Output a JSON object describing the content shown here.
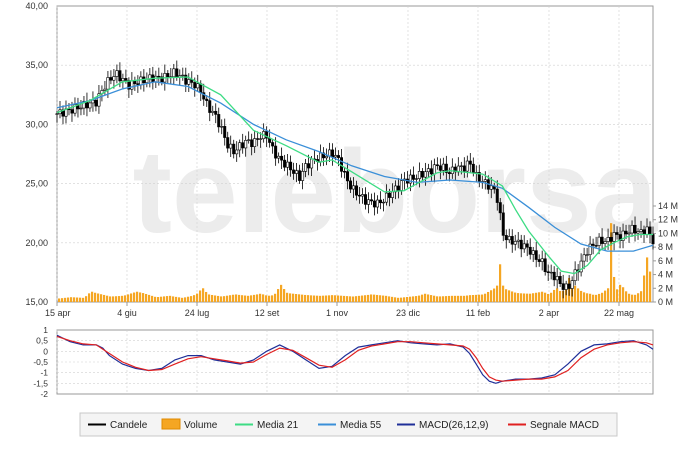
{
  "watermark": "teleborsa",
  "colors": {
    "candle": "#000000",
    "candle_up": "#ffffff",
    "volume_fill": "#f5a623",
    "volume_stroke": "#e08a00",
    "ma21": "#3ddc84",
    "ma55": "#3a8fd8",
    "macd": "#1f2f99",
    "signal": "#e02020",
    "grid": "#d0d0d0",
    "axis_text": "#333333",
    "panel_border": "#999999"
  },
  "chart_data": [
    {
      "type": "candlestick",
      "title": "",
      "x_tick_labels": [
        "15 apr",
        "4 giu",
        "24 lug",
        "12 set",
        "1 nov",
        "23 dic",
        "11 feb",
        "2 apr",
        "22 mag"
      ],
      "ylim": [
        15,
        40
      ],
      "y_ticks": [
        "15,00",
        "20,00",
        "25,00",
        "30,00",
        "35,00",
        "40,00"
      ],
      "volume_axis": {
        "ylim": [
          0,
          14
        ],
        "unit": "M",
        "ticks": [
          "0 M",
          "2 M",
          "4 M",
          "6 M",
          "8 M",
          "10 M",
          "12 M",
          "14 M"
        ]
      },
      "grid": true,
      "price_points": [
        [
          0,
          30.9
        ],
        [
          2,
          31.2
        ],
        [
          4,
          31.6
        ],
        [
          6,
          31.9
        ],
        [
          7,
          33.0
        ],
        [
          8,
          33.8
        ],
        [
          9,
          34.3
        ],
        [
          10,
          33.8
        ],
        [
          11,
          33.3
        ],
        [
          12,
          33.5
        ],
        [
          14,
          33.9
        ],
        [
          16,
          33.9
        ],
        [
          17,
          34.1
        ],
        [
          18,
          34.4
        ],
        [
          19,
          34.0
        ],
        [
          20,
          33.6
        ],
        [
          21,
          33.4
        ],
        [
          22,
          32.8
        ],
        [
          23,
          31.5
        ],
        [
          24,
          30.9
        ],
        [
          25,
          29.8
        ],
        [
          26,
          28.3
        ],
        [
          27,
          27.7
        ],
        [
          28,
          28.2
        ],
        [
          29,
          28.6
        ],
        [
          30,
          28.4
        ],
        [
          31,
          29.0
        ],
        [
          32,
          29.1
        ],
        [
          33,
          27.8
        ],
        [
          34,
          27.0
        ],
        [
          35,
          26.6
        ],
        [
          36,
          26.1
        ],
        [
          37,
          25.5
        ],
        [
          38,
          26.5
        ],
        [
          39,
          26.9
        ],
        [
          40,
          27.2
        ],
        [
          41,
          27.4
        ],
        [
          42,
          27.6
        ],
        [
          43,
          27.0
        ],
        [
          44,
          25.6
        ],
        [
          45,
          24.6
        ],
        [
          46,
          24.1
        ],
        [
          47,
          23.6
        ],
        [
          48,
          23.4
        ],
        [
          49,
          23.3
        ],
        [
          50,
          23.7
        ],
        [
          51,
          24.2
        ],
        [
          52,
          24.7
        ],
        [
          53,
          25.3
        ],
        [
          54,
          25.4
        ],
        [
          55,
          25.6
        ],
        [
          56,
          25.9
        ],
        [
          57,
          26.1
        ],
        [
          58,
          26.5
        ],
        [
          59,
          26.3
        ],
        [
          60,
          25.9
        ],
        [
          61,
          26.4
        ],
        [
          62,
          26.3
        ],
        [
          63,
          26.8
        ],
        [
          64,
          25.6
        ],
        [
          65,
          25.2
        ],
        [
          66,
          24.8
        ],
        [
          67,
          24.3
        ],
        [
          67.5,
          23.0
        ],
        [
          68,
          20.8
        ],
        [
          69,
          20.2
        ],
        [
          70,
          20.1
        ],
        [
          71,
          19.8
        ],
        [
          72,
          19.5
        ],
        [
          73,
          18.8
        ],
        [
          74,
          18.4
        ],
        [
          75,
          17.4
        ],
        [
          76,
          17.2
        ],
        [
          77,
          16.4
        ],
        [
          78,
          16.1
        ],
        [
          79,
          17.3
        ],
        [
          80,
          18.3
        ],
        [
          81,
          19.4
        ],
        [
          82,
          19.9
        ],
        [
          83,
          20.2
        ],
        [
          84,
          20.1
        ],
        [
          85,
          20.7
        ],
        [
          86,
          20.5
        ],
        [
          87,
          20.9
        ],
        [
          88,
          21.2
        ],
        [
          89,
          20.8
        ],
        [
          90,
          21.2
        ],
        [
          91,
          20.2
        ]
      ],
      "ma21": [
        [
          0,
          31.0
        ],
        [
          5,
          32.0
        ],
        [
          10,
          33.6
        ],
        [
          15,
          33.9
        ],
        [
          20,
          34.0
        ],
        [
          25,
          32.5
        ],
        [
          30,
          29.5
        ],
        [
          35,
          28.2
        ],
        [
          40,
          26.8
        ],
        [
          42,
          27.0
        ],
        [
          45,
          26.0
        ],
        [
          50,
          24.3
        ],
        [
          53,
          24.4
        ],
        [
          55,
          25.0
        ],
        [
          58,
          25.9
        ],
        [
          60,
          26.1
        ],
        [
          65,
          25.8
        ],
        [
          68,
          24.8
        ],
        [
          70,
          22.8
        ],
        [
          72,
          21.0
        ],
        [
          75,
          18.9
        ],
        [
          77,
          17.6
        ],
        [
          79,
          17.4
        ],
        [
          81,
          18.1
        ],
        [
          83,
          19.4
        ],
        [
          85,
          20.0
        ],
        [
          87,
          20.5
        ],
        [
          89,
          20.7
        ],
        [
          91,
          20.7
        ]
      ],
      "ma55": [
        [
          0,
          31.4
        ],
        [
          5,
          32.0
        ],
        [
          10,
          33.0
        ],
        [
          15,
          33.6
        ],
        [
          20,
          33.2
        ],
        [
          25,
          31.8
        ],
        [
          30,
          30.0
        ],
        [
          35,
          28.7
        ],
        [
          40,
          27.7
        ],
        [
          45,
          26.5
        ],
        [
          50,
          25.6
        ],
        [
          55,
          25.1
        ],
        [
          60,
          25.3
        ],
        [
          65,
          25.1
        ],
        [
          68,
          24.6
        ],
        [
          72,
          23.0
        ],
        [
          76,
          21.3
        ],
        [
          80,
          19.9
        ],
        [
          84,
          19.3
        ],
        [
          88,
          19.3
        ],
        [
          91,
          19.8
        ]
      ],
      "volume_millions": [
        [
          0,
          0.5
        ],
        [
          2,
          0.7
        ],
        [
          4,
          0.6
        ],
        [
          5,
          1.5
        ],
        [
          8,
          0.8
        ],
        [
          10,
          0.9
        ],
        [
          12,
          1.5
        ],
        [
          13,
          1.3
        ],
        [
          15,
          0.7
        ],
        [
          17,
          0.9
        ],
        [
          19,
          0.6
        ],
        [
          21,
          1.0
        ],
        [
          22,
          2.0
        ],
        [
          23,
          1.1
        ],
        [
          25,
          0.8
        ],
        [
          27,
          1.1
        ],
        [
          29,
          0.9
        ],
        [
          31,
          1.2
        ],
        [
          32,
          0.9
        ],
        [
          33,
          1.0
        ],
        [
          34,
          2.5
        ],
        [
          35,
          1.3
        ],
        [
          38,
          1.0
        ],
        [
          40,
          0.9
        ],
        [
          42,
          1.0
        ],
        [
          45,
          0.8
        ],
        [
          48,
          1.1
        ],
        [
          50,
          0.9
        ],
        [
          52,
          0.6
        ],
        [
          55,
          0.9
        ],
        [
          56,
          1.2
        ],
        [
          58,
          0.8
        ],
        [
          60,
          0.9
        ],
        [
          62,
          0.9
        ],
        [
          63,
          1.0
        ],
        [
          65,
          1.1
        ],
        [
          67,
          2.2
        ],
        [
          67.5,
          5.5
        ],
        [
          68,
          2.0
        ],
        [
          70,
          1.3
        ],
        [
          72,
          1.2
        ],
        [
          74,
          1.5
        ],
        [
          75,
          1.1
        ],
        [
          76,
          2.0
        ],
        [
          77,
          1.4
        ],
        [
          78,
          3.5
        ],
        [
          79,
          2.3
        ],
        [
          80,
          1.5
        ],
        [
          81,
          1.2
        ],
        [
          82,
          1.0
        ],
        [
          83,
          1.3
        ],
        [
          84,
          2.0
        ],
        [
          84.5,
          11.5
        ],
        [
          85,
          1.5
        ],
        [
          86,
          2.5
        ],
        [
          87,
          1.2
        ],
        [
          88,
          1.0
        ],
        [
          89,
          1.5
        ],
        [
          90,
          6.5
        ],
        [
          91,
          1.2
        ]
      ]
    },
    {
      "type": "line",
      "title": "",
      "ylim": [
        -2,
        1
      ],
      "y_ticks": [
        "1",
        "0,5",
        "0",
        "-0,5",
        "-1",
        "-1,5",
        "-2"
      ],
      "grid": true,
      "series": [
        {
          "name": "MACD(26,12,9)",
          "points": [
            [
              0,
              0.75
            ],
            [
              2,
              0.45
            ],
            [
              4,
              0.3
            ],
            [
              6,
              0.3
            ],
            [
              7,
              0.15
            ],
            [
              8,
              -0.2
            ],
            [
              10,
              -0.6
            ],
            [
              12,
              -0.8
            ],
            [
              14,
              -0.9
            ],
            [
              16,
              -0.8
            ],
            [
              18,
              -0.4
            ],
            [
              20,
              -0.2
            ],
            [
              22,
              -0.2
            ],
            [
              24,
              -0.4
            ],
            [
              26,
              -0.5
            ],
            [
              28,
              -0.6
            ],
            [
              30,
              -0.4
            ],
            [
              32,
              0.0
            ],
            [
              34,
              0.3
            ],
            [
              36,
              0.0
            ],
            [
              38,
              -0.4
            ],
            [
              40,
              -0.8
            ],
            [
              42,
              -0.7
            ],
            [
              44,
              -0.2
            ],
            [
              46,
              0.2
            ],
            [
              48,
              0.3
            ],
            [
              50,
              0.4
            ],
            [
              52,
              0.5
            ],
            [
              54,
              0.4
            ],
            [
              56,
              0.35
            ],
            [
              58,
              0.3
            ],
            [
              60,
              0.35
            ],
            [
              62,
              0.2
            ],
            [
              63,
              -0.1
            ],
            [
              64,
              -0.6
            ],
            [
              65,
              -1.1
            ],
            [
              66,
              -1.4
            ],
            [
              67,
              -1.5
            ],
            [
              68,
              -1.4
            ],
            [
              70,
              -1.3
            ],
            [
              72,
              -1.3
            ],
            [
              74,
              -1.25
            ],
            [
              76,
              -1.1
            ],
            [
              78,
              -0.6
            ],
            [
              80,
              0.0
            ],
            [
              82,
              0.3
            ],
            [
              84,
              0.35
            ],
            [
              86,
              0.45
            ],
            [
              88,
              0.5
            ],
            [
              90,
              0.3
            ],
            [
              91,
              0.1
            ]
          ]
        },
        {
          "name": "Segnale MACD",
          "points": [
            [
              0,
              0.7
            ],
            [
              2,
              0.5
            ],
            [
              4,
              0.35
            ],
            [
              6,
              0.3
            ],
            [
              8,
              -0.1
            ],
            [
              10,
              -0.5
            ],
            [
              12,
              -0.75
            ],
            [
              14,
              -0.9
            ],
            [
              16,
              -0.85
            ],
            [
              18,
              -0.6
            ],
            [
              20,
              -0.35
            ],
            [
              22,
              -0.25
            ],
            [
              24,
              -0.35
            ],
            [
              26,
              -0.45
            ],
            [
              28,
              -0.55
            ],
            [
              30,
              -0.5
            ],
            [
              32,
              -0.15
            ],
            [
              34,
              0.15
            ],
            [
              36,
              0.05
            ],
            [
              38,
              -0.3
            ],
            [
              40,
              -0.65
            ],
            [
              42,
              -0.75
            ],
            [
              44,
              -0.4
            ],
            [
              46,
              0.05
            ],
            [
              48,
              0.25
            ],
            [
              50,
              0.35
            ],
            [
              52,
              0.45
            ],
            [
              54,
              0.45
            ],
            [
              56,
              0.4
            ],
            [
              58,
              0.35
            ],
            [
              60,
              0.3
            ],
            [
              62,
              0.25
            ],
            [
              63,
              0.1
            ],
            [
              64,
              -0.3
            ],
            [
              65,
              -0.8
            ],
            [
              66,
              -1.2
            ],
            [
              67,
              -1.35
            ],
            [
              68,
              -1.4
            ],
            [
              70,
              -1.35
            ],
            [
              72,
              -1.3
            ],
            [
              74,
              -1.3
            ],
            [
              76,
              -1.2
            ],
            [
              78,
              -0.9
            ],
            [
              80,
              -0.3
            ],
            [
              82,
              0.1
            ],
            [
              84,
              0.3
            ],
            [
              86,
              0.4
            ],
            [
              88,
              0.45
            ],
            [
              90,
              0.4
            ],
            [
              91,
              0.3
            ]
          ]
        }
      ]
    }
  ],
  "legend": [
    {
      "label": "Candele",
      "kind": "line",
      "color": "#000000",
      "icon": "candle-swatch-icon"
    },
    {
      "label": "Volume",
      "kind": "box",
      "color": "#f5a623",
      "icon": "volume-swatch-icon"
    },
    {
      "label": "Media 21",
      "kind": "line",
      "color": "#3ddc84",
      "icon": "ma21-swatch-icon"
    },
    {
      "label": "Media 55",
      "kind": "line",
      "color": "#3a8fd8",
      "icon": "ma55-swatch-icon"
    },
    {
      "label": "MACD(26,12,9)",
      "kind": "line",
      "color": "#1f2f99",
      "icon": "macd-swatch-icon"
    },
    {
      "label": "Segnale MACD",
      "kind": "line",
      "color": "#e02020",
      "icon": "signal-swatch-icon"
    }
  ]
}
